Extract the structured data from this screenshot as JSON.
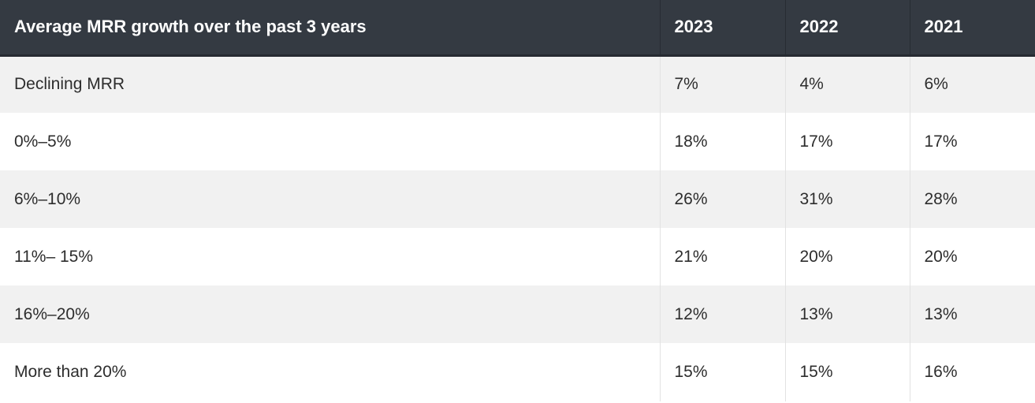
{
  "table": {
    "headers": [
      "Average MRR growth over the past 3 years",
      "2023",
      "2022",
      "2021"
    ],
    "rows": [
      {
        "label": "Declining MRR",
        "values": [
          "7%",
          "4%",
          "6%"
        ]
      },
      {
        "label": "0%–5%",
        "values": [
          "18%",
          "17%",
          "17%"
        ]
      },
      {
        "label": "6%–10%",
        "values": [
          "26%",
          "31%",
          "28%"
        ]
      },
      {
        "label": "11%– 15%",
        "values": [
          "21%",
          "20%",
          "20%"
        ]
      },
      {
        "label": "16%–20%",
        "values": [
          "12%",
          "13%",
          "13%"
        ]
      },
      {
        "label": "More than 20%",
        "values": [
          "15%",
          "15%",
          "16%"
        ]
      }
    ]
  },
  "colors": {
    "header_bg": "#343a42",
    "header_text": "#ffffff",
    "row_odd_bg": "#f1f1f1",
    "row_even_bg": "#ffffff",
    "body_text": "#2d2d2d"
  }
}
